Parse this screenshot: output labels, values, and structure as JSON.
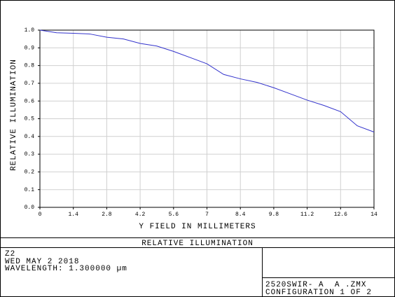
{
  "chart_data": {
    "type": "line",
    "title": "RELATIVE ILLUMINATION",
    "x_label": "Y FIELD IN MILLIMETERS",
    "y_label": "RELATIVE ILLUMINATION",
    "x": [
      0,
      0.7,
      1.4,
      2.1,
      2.8,
      3.5,
      4.2,
      4.9,
      5.6,
      6.3,
      7,
      7.7,
      8.4,
      9.1,
      9.8,
      10.5,
      11.2,
      11.9,
      12.6,
      13.3,
      14
    ],
    "series": [
      {
        "color": "#3333cc",
        "values": [
          1.0,
          0.985,
          0.982,
          0.978,
          0.96,
          0.95,
          0.925,
          0.91,
          0.88,
          0.845,
          0.81,
          0.75,
          0.725,
          0.705,
          0.675,
          0.64,
          0.605,
          0.575,
          0.54,
          0.46,
          0.425
        ]
      }
    ],
    "xlim": [
      0,
      14
    ],
    "xticks": [
      0,
      1.4,
      2.8,
      4.2,
      5.6,
      7,
      8.4,
      9.8,
      11.2,
      12.6,
      14
    ],
    "ylim": [
      0,
      1
    ],
    "yticks": [
      {
        "value": 0,
        "label": "0.0"
      },
      0.1,
      0.2,
      0.3,
      0.4,
      0.5,
      0.6,
      0.7,
      0.8,
      0.9,
      {
        "value": 1,
        "label": "1.0"
      }
    ],
    "grid": true
  },
  "footer": {
    "lines": [
      "Z2",
      "WED MAY 2 2018",
      "WAVELENGTH: 1.300000 µm"
    ],
    "file": "2520SWIR- A  A .ZMX",
    "configuration": "CONFIGURATION 1 OF 2"
  }
}
